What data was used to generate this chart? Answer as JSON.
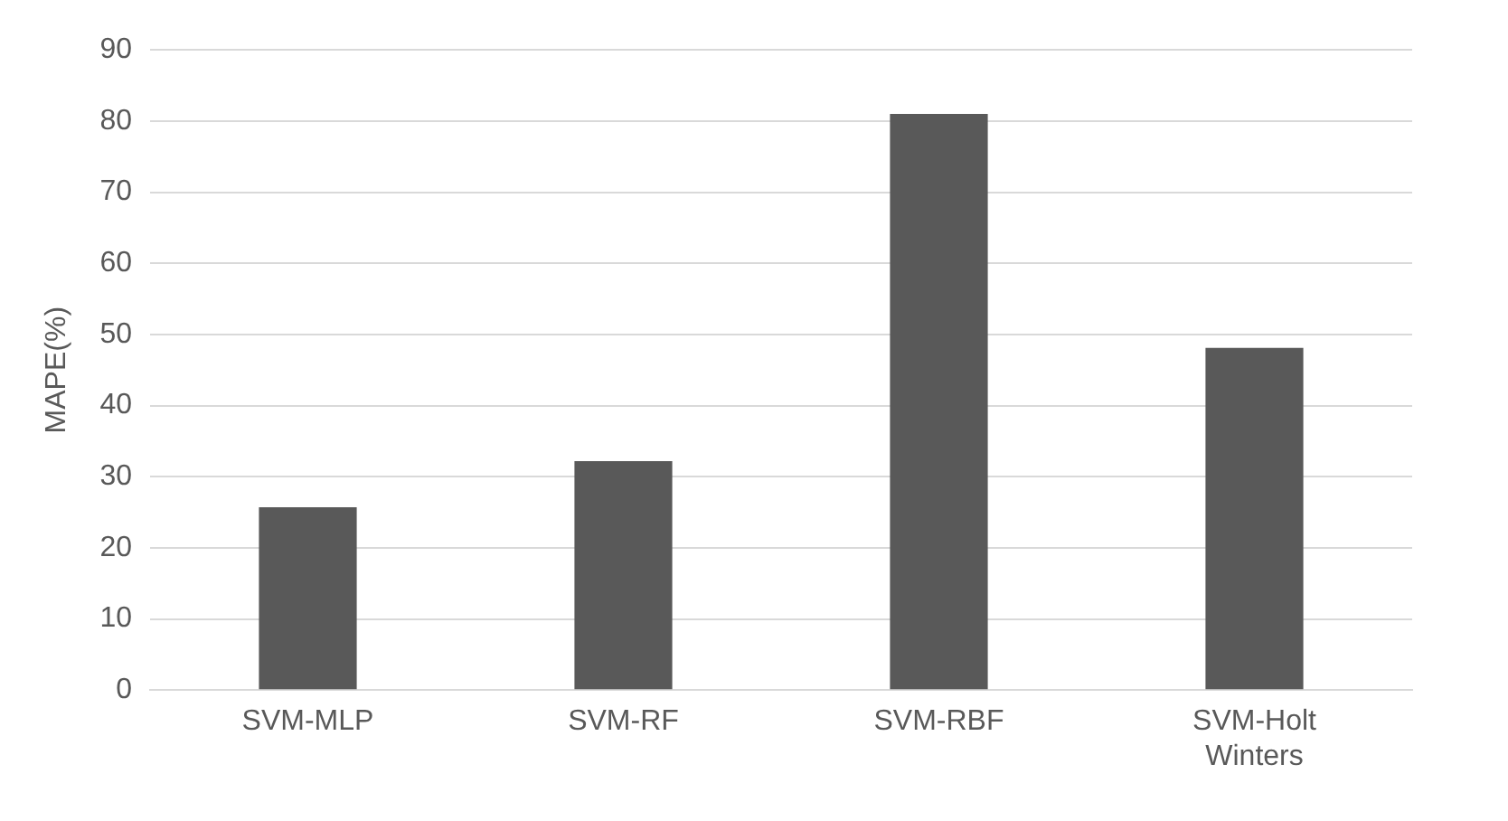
{
  "chart_data": {
    "type": "bar",
    "ylabel": "MAPE(%)",
    "categories": [
      "SVM-MLP",
      "SVM-RF",
      "SVM-RBF",
      "SVM-Holt Winters"
    ],
    "values": [
      25.7,
      32.2,
      81.0,
      48.1
    ],
    "color": "#595959",
    "ylim": [
      0,
      90
    ],
    "yticks": [
      0,
      10,
      20,
      30,
      40,
      50,
      60,
      70,
      80,
      90
    ],
    "grid": "y"
  }
}
